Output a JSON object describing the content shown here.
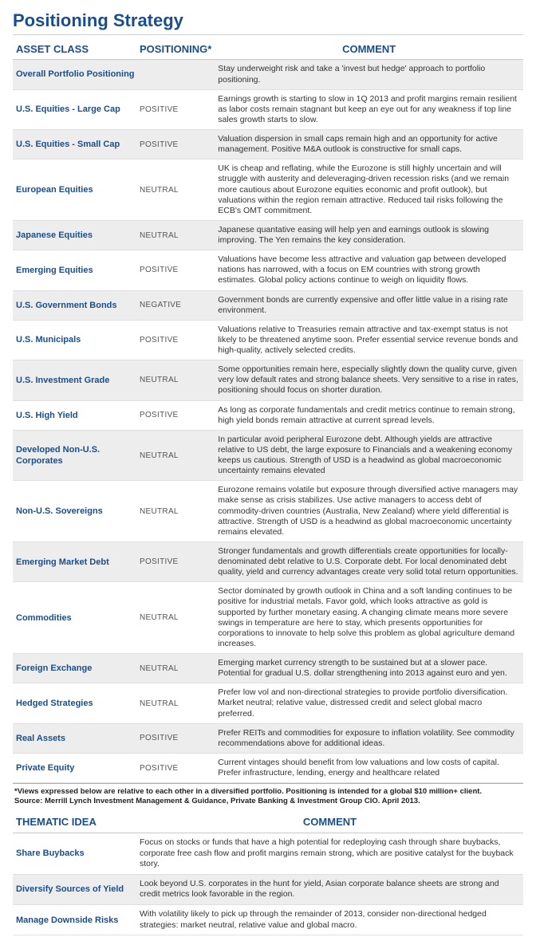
{
  "title": "Positioning Strategy",
  "headers": {
    "asset": "ASSET CLASS",
    "positioning": "POSITIONING*",
    "comment": "COMMENT"
  },
  "rows": [
    {
      "asset": "Overall Portfolio Positioning",
      "pos": "",
      "comment": "Stay underweight risk and take a 'invest but hedge' approach to portfolio positioning.",
      "shade": true
    },
    {
      "asset": "U.S. Equities - Large Cap",
      "pos": "POSITIVE",
      "comment": "Earnings growth is starting to slow in 1Q 2013 and profit margins remain resilient as labor costs remain stagnant but keep an eye out for any weakness if top line sales growth starts to slow.",
      "shade": false
    },
    {
      "asset": "U.S. Equities - Small Cap",
      "pos": "POSITIVE",
      "comment": "Valuation dispersion in small caps remain high and an opportunity for active management. Positive M&A outlook is constructive for small caps.",
      "shade": true
    },
    {
      "asset": "European Equities",
      "pos": "NEUTRAL",
      "comment": "UK is cheap and reflating, while the Eurozone is still highly uncertain and will struggle with austerity and deleveraging-driven recession risks (and we remain more cautious about Eurozone equities economic and profit outlook), but valuations within the region remain attractive. Reduced tail risks following the ECB's OMT commitment.",
      "shade": false
    },
    {
      "asset": "Japanese Equities",
      "pos": "NEUTRAL",
      "comment": "Japanese quantative easing will help yen and earnings outlook is slowing improving. The Yen remains the key consideration.",
      "shade": true
    },
    {
      "asset": "Emerging Equities",
      "pos": "POSITIVE",
      "comment": "Valuations have become less attractive and valuation gap between developed nations has narrowed, with a focus on EM countries with strong growth estimates. Global policy actions continue to weigh on liquidity flows.",
      "shade": false
    },
    {
      "asset": "U.S. Government Bonds",
      "pos": "NEGATIVE",
      "comment": "Government bonds are currently expensive and offer little value in a rising rate environment.",
      "shade": true
    },
    {
      "asset": "U.S. Municipals",
      "pos": "POSITIVE",
      "comment": "Valuations relative to Treasuries remain attractive and tax-exempt status is not likely to be threatened anytime soon. Prefer essential service revenue bonds and high-quality, actively selected credits.",
      "shade": false
    },
    {
      "asset": "U.S. Investment Grade",
      "pos": "NEUTRAL",
      "comment": "Some opportunities remain here, especially slightly down the quality curve, given very low default rates and strong balance sheets. Very sensitive to a rise in rates, positioning should focus on shorter duration.",
      "shade": true
    },
    {
      "asset": "U.S. High Yield",
      "pos": "POSITIVE",
      "comment": "As long as corporate fundamentals and credit metrics continue to remain strong, high yield bonds remain attractive at current spread levels.",
      "shade": false
    },
    {
      "asset": "Developed Non-U.S. Corporates",
      "pos": "NEUTRAL",
      "comment": "In particular avoid peripheral Eurozone debt. Although yields are attractive relative to US debt, the large exposure to Financials and a weakening economy keeps us cautious. Strength of USD is a headwind as global macroeconomic uncertainty remains elevated",
      "shade": true
    },
    {
      "asset": "Non-U.S. Sovereigns",
      "pos": "NEUTRAL",
      "comment": "Eurozone remains volatile but exposure through diversified active managers may make sense as crisis stabilizes. Use active managers to access debt of commodity-driven countries (Australia, New Zealand) where yield differential is attractive. Strength of USD is a headwind as global macroeconomic uncertainty remains elevated.",
      "shade": false
    },
    {
      "asset": "Emerging Market Debt",
      "pos": "POSITIVE",
      "comment": "Stronger fundamentals and growth differentials create opportunities for locally-denominated debt relative to U.S. Corporate debt. For local denominated debt quality, yield and currency advantages create very solid total return opportunities.",
      "shade": true
    },
    {
      "asset": "Commodities",
      "pos": "NEUTRAL",
      "comment": "Sector dominated by growth outlook in China and a soft landing continues to be positive for industrial metals. Favor gold, which looks attractive as gold is supported by further monetary easing. A changing climate means more severe swings in temperature are here to stay, which presents opportunities for corporations to innovate to help solve this problem as global agriculture demand increases.",
      "shade": false
    },
    {
      "asset": "Foreign Exchange",
      "pos": "NEUTRAL",
      "comment": "Emerging market currency strength to be sustained but at a slower pace. Potential for gradual U.S. dollar strengthening into 2013 against euro and yen.",
      "shade": true
    },
    {
      "asset": "Hedged Strategies",
      "pos": "NEUTRAL",
      "comment": "Prefer low vol and non-directional strategies to provide portfolio diversification. Market neutral; relative value, distressed credit and select global macro preferred.",
      "shade": false
    },
    {
      "asset": "Real Assets",
      "pos": "POSITIVE",
      "comment": "Prefer REITs and commodities for exposure to inflation volatility. See commodity recommendations above for additional ideas.",
      "shade": true
    },
    {
      "asset": "Private Equity",
      "pos": "POSITIVE",
      "comment": "Current vintages should benefit from low valuations and low costs of capital. Prefer infrastructure, lending, energy and healthcare related",
      "shade": false
    }
  ],
  "footnote": "*Views expressed below are relative to each other in a diversified portfolio. Positioning is intended for a global $10 million+ client.\nSource: Merrill Lynch Investment Management & Guidance, Private Banking & Investment Group CIO. April 2013.",
  "thematic_headers": {
    "idea": "THEMATIC IDEA",
    "comment": "COMMENT"
  },
  "thematic_rows": [
    {
      "idea": "Share Buybacks",
      "comment": "Focus on stocks or funds that have a high potential for redeploying cash through share buybacks, corporate free cash flow and profit margins remain strong, which are positive catalyst for the buyback story.",
      "shade": false
    },
    {
      "idea": "Diversify Sources of Yield",
      "comment": "Look beyond U.S. corporates in the hunt for yield, Asian corporate balance sheets are strong and credit metrics look favorable in the region.",
      "shade": true
    },
    {
      "idea": "Manage Downside Risks",
      "comment": "With volatility likely to pick up through the remainder of 2013, consider non-directional hedged strategies: market neutral, relative value and global macro.",
      "shade": false
    }
  ]
}
